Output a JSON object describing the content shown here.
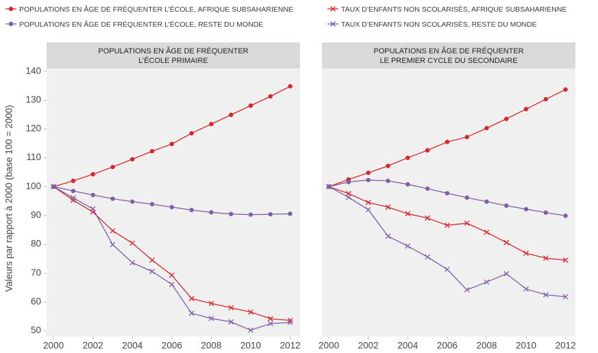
{
  "chart_data": [
    {
      "type": "line",
      "title": [
        "POPULATIONS EN ÂGE DE FRÉQUENTER",
        "L’ÉCOLE PRIMAIRE"
      ],
      "ylabel": "Valeurs par rapport à 2000 (base 100 = 2000)",
      "x": [
        2000,
        2001,
        2002,
        2003,
        2004,
        2005,
        2006,
        2007,
        2008,
        2009,
        2010,
        2011,
        2012
      ],
      "xlim": [
        1999.65,
        2012.5
      ],
      "xticks": [
        2000,
        2002,
        2004,
        2006,
        2008,
        2010,
        2012
      ],
      "ylim": [
        48,
        141
      ],
      "yticks": [
        50,
        60,
        70,
        80,
        90,
        100,
        110,
        120,
        130,
        140
      ],
      "series": [
        {
          "name": "POPULATIONS EN ÂGE DE FRÉQUENTER L’ÉCOLE, AFRIQUE SUBSAHARIENNE",
          "color": "#d7262c",
          "marker": "circle",
          "values": [
            100,
            102,
            104.3,
            106.8,
            109.5,
            112.3,
            114.8,
            118.5,
            121.7,
            124.9,
            128.1,
            131.3,
            134.8
          ]
        },
        {
          "name": "TAUX D’ENFANTS NON SCOLARISÉS, AFRIQUE SUBSAHARIENNE",
          "color": "#d7262c",
          "marker": "x",
          "values": [
            100,
            95.3,
            91.2,
            84.7,
            80.4,
            74.5,
            69.3,
            61.2,
            59.5,
            58,
            56.5,
            54.2,
            53.6
          ]
        },
        {
          "name": "POPULATIONS EN ÂGE DE FRÉQUENTER L’ÉCOLE, RESTE DU MONDE",
          "color": "#7d5fa8",
          "marker": "circle",
          "values": [
            100,
            98.5,
            97.1,
            95.8,
            94.8,
            93.9,
            92.9,
            91.9,
            91.1,
            90.5,
            90.3,
            90.4,
            90.6
          ]
        },
        {
          "name": "TAUX D’ENFANTS NON SCOLARISÉS, RESTE DU MONDE",
          "color": "#7d5fa8",
          "marker": "x",
          "values": [
            100,
            96.1,
            92.3,
            79.9,
            73.6,
            70.6,
            66.1,
            56.1,
            54.3,
            53.1,
            50.2,
            52.5,
            52.9
          ]
        }
      ]
    },
    {
      "type": "line",
      "title": [
        "POPULATIONS EN ÂGE DE FRÉQUENTER",
        "LE PREMIER CYCLE DU SECONDAIRE"
      ],
      "x": [
        2000,
        2001,
        2002,
        2003,
        2004,
        2005,
        2006,
        2007,
        2008,
        2009,
        2010,
        2011,
        2012
      ],
      "xlim": [
        1999.65,
        2012.5
      ],
      "xticks": [
        2000,
        2002,
        2004,
        2006,
        2008,
        2010,
        2012
      ],
      "ylim": [
        48,
        141
      ],
      "series": [
        {
          "color": "#d7262c",
          "marker": "circle",
          "values": [
            100,
            102.5,
            104.8,
            107.2,
            110,
            112.6,
            115.5,
            117.2,
            120.3,
            123.5,
            126.9,
            130.3,
            133.7
          ]
        },
        {
          "color": "#d7262c",
          "marker": "x",
          "values": [
            100,
            97.6,
            94.5,
            92.9,
            90.6,
            89.1,
            86.6,
            87.3,
            84.2,
            80.6,
            76.9,
            75.2,
            74.5
          ]
        },
        {
          "color": "#7d5fa8",
          "marker": "circle",
          "values": [
            100,
            101.6,
            102.3,
            102,
            100.8,
            99.3,
            97.7,
            96.2,
            94.8,
            93.4,
            92.2,
            91,
            89.9
          ]
        },
        {
          "color": "#7d5fa8",
          "marker": "x",
          "values": [
            100,
            96.3,
            92,
            82.8,
            79.4,
            75.6,
            71.3,
            64.2,
            66.9,
            69.8,
            64.5,
            62.5,
            61.8
          ]
        }
      ]
    }
  ]
}
